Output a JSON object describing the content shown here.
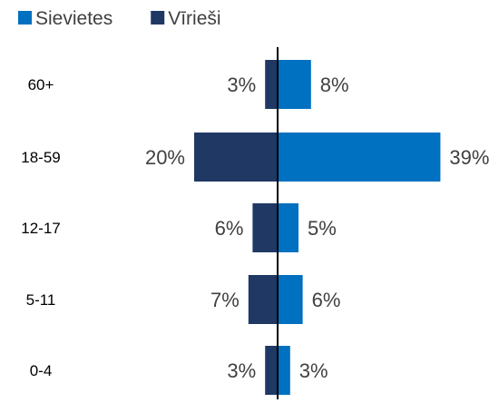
{
  "chart_data": {
    "type": "bar",
    "orientation": "horizontal",
    "layout": "population-pyramid",
    "title": "",
    "xlabel": "",
    "ylabel": "",
    "categories": [
      "60+",
      "18-59",
      "12-17",
      "5-11",
      "0-4"
    ],
    "series": [
      {
        "name": "Sievietes",
        "color": "#0070c0",
        "side": "right",
        "values": [
          8,
          39,
          5,
          6,
          3
        ],
        "labels": [
          "8%",
          "39%",
          "5%",
          "6%",
          "3%"
        ]
      },
      {
        "name": "Vīrieši",
        "color": "#1f3864",
        "side": "left",
        "values": [
          3,
          20,
          6,
          7,
          3
        ],
        "labels": [
          "3%",
          "20%",
          "6%",
          "7%",
          "3%"
        ]
      }
    ],
    "legend_position": "top-left",
    "grid": false,
    "value_unit": "%"
  }
}
